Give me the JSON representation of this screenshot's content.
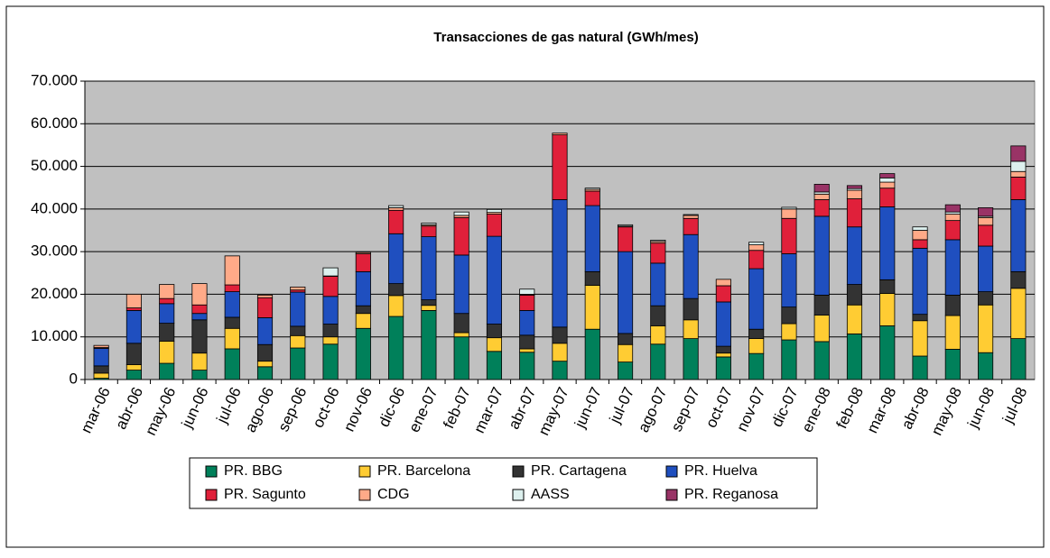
{
  "chart_data": {
    "type": "stacked_bar",
    "title": "Transacciones de gas natural (GWh/mes)",
    "categories": [
      "mar-06",
      "abr-06",
      "may-06",
      "jun-06",
      "jul-06",
      "ago-06",
      "sep-06",
      "oct-06",
      "nov-06",
      "dic-06",
      "ene-07",
      "feb-07",
      "mar-07",
      "abr-07",
      "may-07",
      "jun-07",
      "jul-07",
      "ago-07",
      "sep-07",
      "oct-07",
      "nov-07",
      "dic-07",
      "ene-08",
      "feb-08",
      "mar-08",
      "abr-08",
      "may-08",
      "jun-08",
      "jul-08"
    ],
    "series": [
      {
        "name": "PR. BBG",
        "color": "#00805a",
        "values": [
          300,
          2200,
          3800,
          2200,
          7200,
          3000,
          7400,
          8300,
          12000,
          14800,
          16200,
          10000,
          6600,
          6400,
          4300,
          11800,
          4100,
          8300,
          9600,
          5300,
          6100,
          9300,
          8900,
          10700,
          12600,
          5500,
          7100,
          6300,
          9600
        ]
      },
      {
        "name": "PR. Barcelona",
        "color": "#ffcc33",
        "values": [
          1200,
          1300,
          5200,
          4000,
          4800,
          1300,
          2900,
          1700,
          3500,
          4900,
          1200,
          1000,
          3200,
          800,
          4200,
          10300,
          4100,
          4300,
          4400,
          900,
          3500,
          3800,
          6200,
          6800,
          7600,
          8300,
          7900,
          11200,
          11800
        ]
      },
      {
        "name": "PR. Cartagena",
        "color": "#333333",
        "values": [
          1700,
          5000,
          4200,
          7800,
          2600,
          3900,
          2200,
          3000,
          1800,
          2800,
          1300,
          4500,
          3200,
          3200,
          3800,
          3200,
          2600,
          4700,
          5000,
          1600,
          2200,
          3900,
          4700,
          4800,
          3200,
          1500,
          4800,
          3100,
          3900
        ]
      },
      {
        "name": "PR. Huelva",
        "color": "#1f4fbf",
        "values": [
          4100,
          7700,
          4600,
          1500,
          6000,
          6300,
          8000,
          6500,
          8000,
          11700,
          14800,
          13700,
          20600,
          5800,
          29900,
          15500,
          19200,
          10000,
          15000,
          10400,
          14200,
          12500,
          18500,
          13500,
          17100,
          15500,
          13000,
          10700,
          16900
        ]
      },
      {
        "name": "PR. Sagunto",
        "color": "#e0203a",
        "values": [
          200,
          600,
          1200,
          2000,
          1600,
          4700,
          500,
          4700,
          4200,
          5500,
          2500,
          8800,
          5200,
          3600,
          15200,
          3400,
          5800,
          4700,
          3800,
          3800,
          4300,
          8300,
          3900,
          6600,
          4400,
          2000,
          4500,
          4900,
          5300
        ]
      },
      {
        "name": "CDG",
        "color": "#ffaa88",
        "values": [
          500,
          3200,
          3300,
          5000,
          6800,
          600,
          700,
          100,
          300,
          600,
          300,
          500,
          400,
          200,
          400,
          400,
          200,
          400,
          700,
          1500,
          1300,
          2200,
          1300,
          2000,
          1400,
          2200,
          1500,
          1800,
          1300
        ]
      },
      {
        "name": "AASS",
        "color": "#ddf0ee",
        "values": [
          0,
          0,
          0,
          0,
          0,
          0,
          0,
          1900,
          0,
          500,
          400,
          800,
          700,
          1200,
          0,
          300,
          300,
          300,
          200,
          0,
          600,
          400,
          500,
          400,
          1000,
          800,
          500,
          300,
          2400
        ]
      },
      {
        "name": "PR. Reganosa",
        "color": "#993366",
        "values": [
          0,
          0,
          0,
          0,
          0,
          0,
          0,
          0,
          0,
          0,
          0,
          0,
          0,
          0,
          0,
          0,
          0,
          0,
          0,
          0,
          0,
          0,
          1800,
          700,
          1000,
          0,
          1700,
          2000,
          3600
        ]
      }
    ],
    "ylim": [
      0,
      70000
    ],
    "yticks": [
      0,
      {
        "value": 10000,
        "label": "10.000"
      },
      {
        "value": 20000,
        "label": "20.000"
      },
      {
        "value": 30000,
        "label": "30.000"
      },
      {
        "value": 40000,
        "label": "40.000"
      },
      {
        "value": 50000,
        "label": "50.000"
      },
      {
        "value": 60000,
        "label": "60.000"
      },
      {
        "value": 70000,
        "label": "70.000"
      }
    ],
    "grid": true,
    "legend": "bottom"
  }
}
